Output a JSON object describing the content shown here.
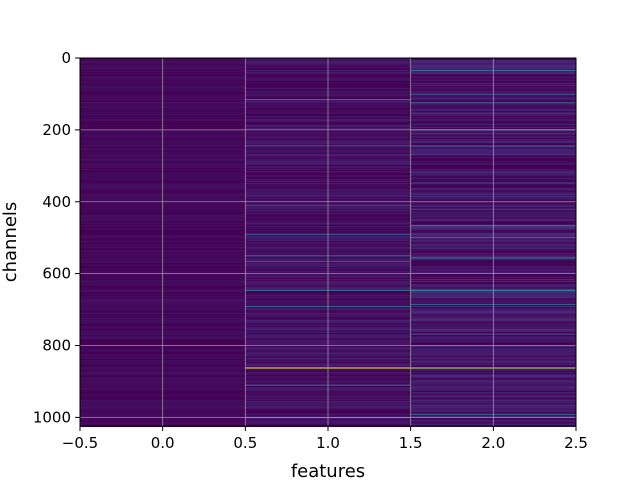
{
  "chart_data": {
    "type": "heatmap",
    "title": "",
    "xlabel": "features",
    "ylabel": "channels",
    "xlim": [
      -0.5,
      2.5
    ],
    "ylim": [
      1024,
      0
    ],
    "x_ticks": [
      -0.5,
      0.0,
      0.5,
      1.0,
      1.5,
      2.0,
      2.5
    ],
    "x_tick_labels": [
      "−0.5",
      "0.0",
      "0.5",
      "1.0",
      "1.5",
      "2.0",
      "2.5"
    ],
    "y_ticks": [
      0,
      200,
      400,
      600,
      800,
      1000
    ],
    "y_tick_labels": [
      "0",
      "200",
      "400",
      "600",
      "800",
      "1000"
    ],
    "grid": true,
    "colormap": "viridis",
    "n_rows": 1024,
    "n_cols": 3,
    "base_level": [
      0.02,
      0.04,
      0.06
    ],
    "highlights": [
      {
        "col": 1,
        "row": 115,
        "v": 0.35
      },
      {
        "col": 1,
        "row": 245,
        "v": 0.3
      },
      {
        "col": 1,
        "row": 410,
        "v": 0.28
      },
      {
        "col": 1,
        "row": 490,
        "v": 0.3
      },
      {
        "col": 1,
        "row": 550,
        "v": 0.35
      },
      {
        "col": 1,
        "row": 565,
        "v": 0.3
      },
      {
        "col": 1,
        "row": 645,
        "v": 0.38
      },
      {
        "col": 1,
        "row": 690,
        "v": 0.3
      },
      {
        "col": 1,
        "row": 862,
        "v": 0.95
      },
      {
        "col": 1,
        "row": 910,
        "v": 0.3
      },
      {
        "col": 1,
        "row": 1000,
        "v": 0.28
      },
      {
        "col": 2,
        "row": 35,
        "v": 0.35
      },
      {
        "col": 2,
        "row": 100,
        "v": 0.32
      },
      {
        "col": 2,
        "row": 125,
        "v": 0.3
      },
      {
        "col": 2,
        "row": 200,
        "v": 0.3
      },
      {
        "col": 2,
        "row": 245,
        "v": 0.3
      },
      {
        "col": 2,
        "row": 465,
        "v": 0.42
      },
      {
        "col": 2,
        "row": 500,
        "v": 0.35
      },
      {
        "col": 2,
        "row": 555,
        "v": 0.4
      },
      {
        "col": 2,
        "row": 645,
        "v": 0.45
      },
      {
        "col": 2,
        "row": 685,
        "v": 0.32
      },
      {
        "col": 2,
        "row": 862,
        "v": 0.85
      },
      {
        "col": 2,
        "row": 990,
        "v": 0.3
      }
    ]
  }
}
